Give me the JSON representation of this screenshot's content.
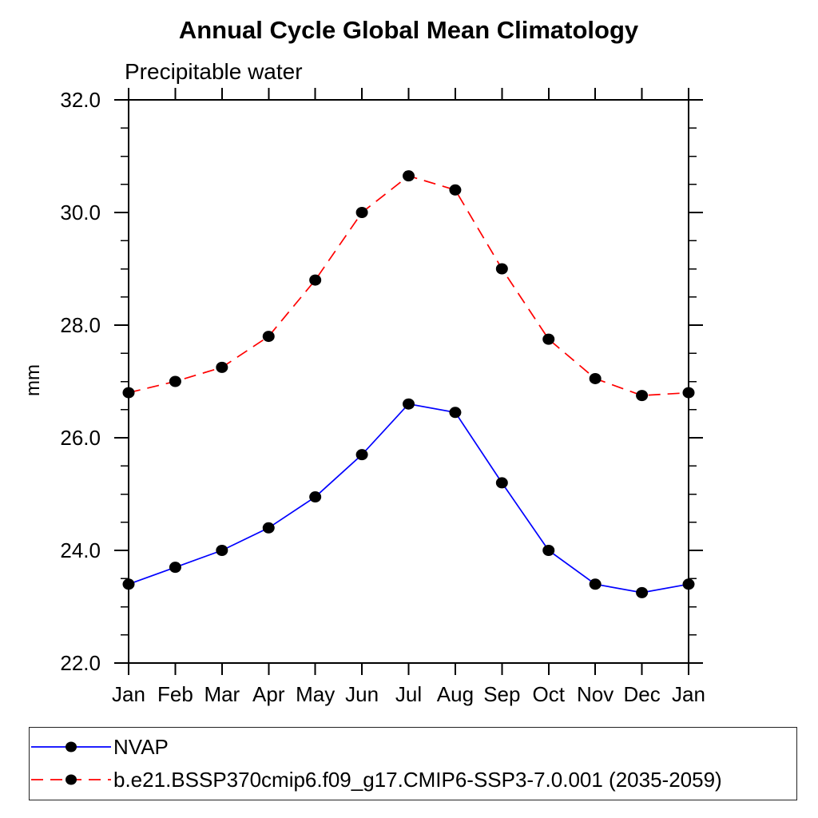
{
  "page": {
    "background_color": "#ffffff",
    "text_color": "#000000"
  },
  "chart_data": {
    "type": "line",
    "title": "Annual Cycle Global Mean Climatology",
    "subtitle": "Precipitable water",
    "xlabel": "",
    "ylabel": "mm",
    "x_tick_labels": [
      "Jan",
      "Feb",
      "Mar",
      "Apr",
      "May",
      "Jun",
      "Jul",
      "Aug",
      "Sep",
      "Oct",
      "Nov",
      "Dec",
      "Jan"
    ],
    "y_tick_values": [
      22.0,
      24.0,
      26.0,
      28.0,
      30.0,
      32.0
    ],
    "y_tick_labels": [
      "22.0",
      "24.0",
      "26.0",
      "28.0",
      "30.0",
      "32.0"
    ],
    "ylim": [
      22.0,
      32.0
    ],
    "y_major_step": 2.0,
    "y_minor_step": 0.5,
    "grid": false,
    "axis_color": "#000000",
    "legend": {
      "position": "bottom-left-box",
      "border": true
    },
    "marker": {
      "shape": "filled-circle",
      "color": "#000000"
    },
    "series": [
      {
        "name": "NVAP",
        "color": "#0000ff",
        "line_style": "solid",
        "values": [
          23.4,
          23.7,
          24.0,
          24.4,
          24.95,
          25.7,
          26.6,
          26.45,
          25.2,
          24.0,
          23.4,
          23.25,
          23.4
        ]
      },
      {
        "name": "b.e21.BSSP370cmip6.f09_g17.CMIP6-SSP3-7.0.001 (2035-2059)",
        "color": "#ff0000",
        "line_style": "dashed",
        "values": [
          26.8,
          27.0,
          27.25,
          27.8,
          28.8,
          30.0,
          30.65,
          30.4,
          29.0,
          27.75,
          27.05,
          26.75,
          26.8
        ]
      }
    ]
  }
}
